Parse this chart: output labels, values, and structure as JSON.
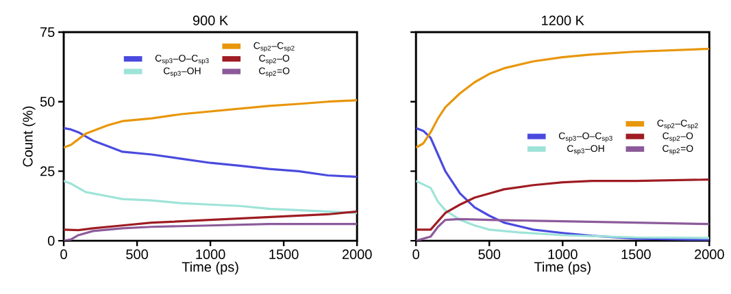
{
  "chart_data": [
    {
      "type": "line",
      "title": "900 K",
      "xlabel": "Time (ps)",
      "ylabel": "Count (%)",
      "xlim": [
        0,
        2000
      ],
      "ylim": [
        0,
        75
      ],
      "xticks": [
        0,
        500,
        1000,
        1500,
        2000
      ],
      "yticks": [
        0,
        25,
        50,
        75
      ],
      "legend": "top",
      "series": [
        {
          "name": "C$_{sp3}$–O–C$_{sp3}$",
          "color": "#4a4adf",
          "x": [
            0,
            50,
            100,
            200,
            300,
            400,
            600,
            800,
            1000,
            1200,
            1400,
            1600,
            1800,
            2000
          ],
          "values": [
            40.5,
            40,
            39,
            36,
            34,
            32,
            31,
            29.5,
            28,
            27,
            25.8,
            25,
            23.5,
            23
          ]
        },
        {
          "name": "C$_{sp3}$–OH",
          "color": "#9ee3d8",
          "x": [
            0,
            50,
            100,
            150,
            300,
            400,
            600,
            800,
            1000,
            1200,
            1400,
            1600,
            1800,
            2000
          ],
          "values": [
            21.5,
            20.5,
            19,
            17.5,
            16,
            15,
            14.5,
            13.5,
            13,
            12.5,
            11.5,
            11,
            10.5,
            10
          ]
        },
        {
          "name": "C$_{sp2}$–C$_{sp2}$",
          "color": "#e8960a",
          "x": [
            0,
            50,
            100,
            150,
            200,
            300,
            400,
            600,
            800,
            1000,
            1200,
            1400,
            1600,
            1800,
            2000
          ],
          "values": [
            33.5,
            34.5,
            36.5,
            38.5,
            39.5,
            41.5,
            43,
            44,
            45.5,
            46.5,
            47.5,
            48.5,
            49.2,
            50,
            50.5
          ]
        },
        {
          "name": "C$_{sp2}$–O",
          "color": "#9e1c22",
          "x": [
            0,
            100,
            200,
            400,
            600,
            800,
            1000,
            1200,
            1400,
            1600,
            1800,
            2000
          ],
          "values": [
            4,
            3.8,
            4.5,
            5.5,
            6.5,
            7,
            7.5,
            8,
            8.5,
            9,
            9.5,
            10.5
          ]
        },
        {
          "name": "C$_{sp2}$=O",
          "color": "#8c5a9a",
          "x": [
            0,
            50,
            100,
            200,
            400,
            600,
            1000,
            1400,
            2000
          ],
          "values": [
            0,
            0.5,
            2,
            3.5,
            4.5,
            5,
            5.5,
            6,
            6
          ]
        }
      ]
    },
    {
      "type": "line",
      "title": "1200 K",
      "xlabel": "Time (ps)",
      "xlim": [
        0,
        2000
      ],
      "ylim": [
        0,
        75
      ],
      "xticks": [
        0,
        500,
        1000,
        1500,
        2000
      ],
      "yticks": [
        0,
        25,
        50,
        75
      ],
      "tick_labels": "x",
      "legend": "right",
      "series": [
        {
          "name": "C$_{sp3}$–O–C$_{sp3}$",
          "color": "#4a4adf",
          "x": [
            0,
            50,
            100,
            150,
            200,
            300,
            400,
            500,
            600,
            800,
            1000,
            1200,
            1500,
            2000
          ],
          "values": [
            40.5,
            39.5,
            37,
            31,
            25,
            17,
            12,
            9,
            6.5,
            4,
            2.8,
            1.8,
            0.8,
            0.3
          ]
        },
        {
          "name": "C$_{sp3}$–OH",
          "color": "#9ee3d8",
          "x": [
            0,
            100,
            150,
            200,
            300,
            400,
            500,
            700,
            1000,
            1500,
            2000
          ],
          "values": [
            21.5,
            19,
            14,
            11,
            7.5,
            5.5,
            4,
            3,
            2,
            1.2,
            1
          ]
        },
        {
          "name": "C$_{sp2}$–C$_{sp2}$",
          "color": "#e8960a",
          "x": [
            0,
            50,
            100,
            150,
            200,
            300,
            400,
            500,
            600,
            800,
            1000,
            1200,
            1500,
            2000
          ],
          "values": [
            33.5,
            35,
            39,
            44,
            48,
            53,
            57,
            60,
            62,
            64.5,
            66,
            67,
            68,
            69
          ]
        },
        {
          "name": "C$_{sp2}$–O",
          "color": "#9e1c22",
          "x": [
            0,
            100,
            150,
            200,
            300,
            400,
            500,
            600,
            800,
            1000,
            1200,
            1500,
            2000
          ],
          "values": [
            4,
            4,
            7,
            10,
            13,
            15.5,
            17,
            18.5,
            20,
            21,
            21.5,
            21.5,
            22
          ]
        },
        {
          "name": "C$_{sp2}$=O",
          "color": "#8c5a9a",
          "x": [
            0,
            100,
            150,
            200,
            300,
            500,
            800,
            1000,
            1500,
            2000
          ],
          "values": [
            0,
            1.5,
            5,
            7.5,
            7.8,
            7.5,
            7.2,
            7,
            6.5,
            6
          ]
        }
      ]
    }
  ]
}
